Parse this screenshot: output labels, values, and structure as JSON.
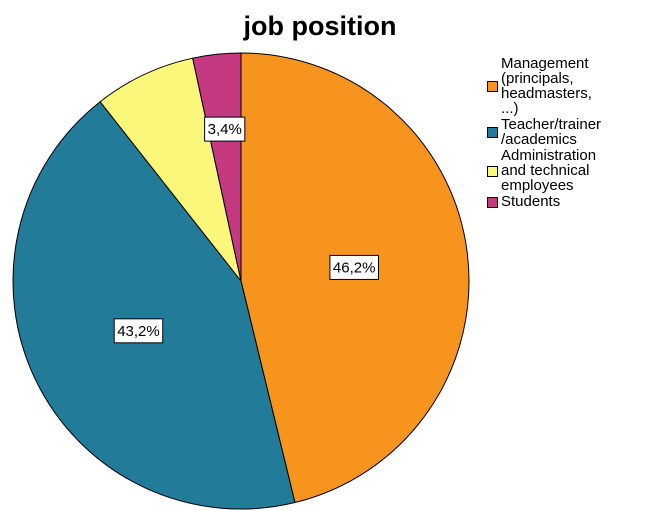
{
  "chart_data": {
    "type": "pie",
    "title": "job position",
    "categories": [
      "Management (principals, headmasters, ...)",
      "Teacher/trainer/academics",
      "Administration and technical employees",
      "Students"
    ],
    "values": [
      46.2,
      43.2,
      7.2,
      3.4
    ],
    "value_labels": [
      "46,2%",
      "43,2%",
      null,
      "3,4%"
    ],
    "colors": [
      "#f7941d",
      "#237b9a",
      "#fbf77a",
      "#c4397f"
    ]
  }
}
